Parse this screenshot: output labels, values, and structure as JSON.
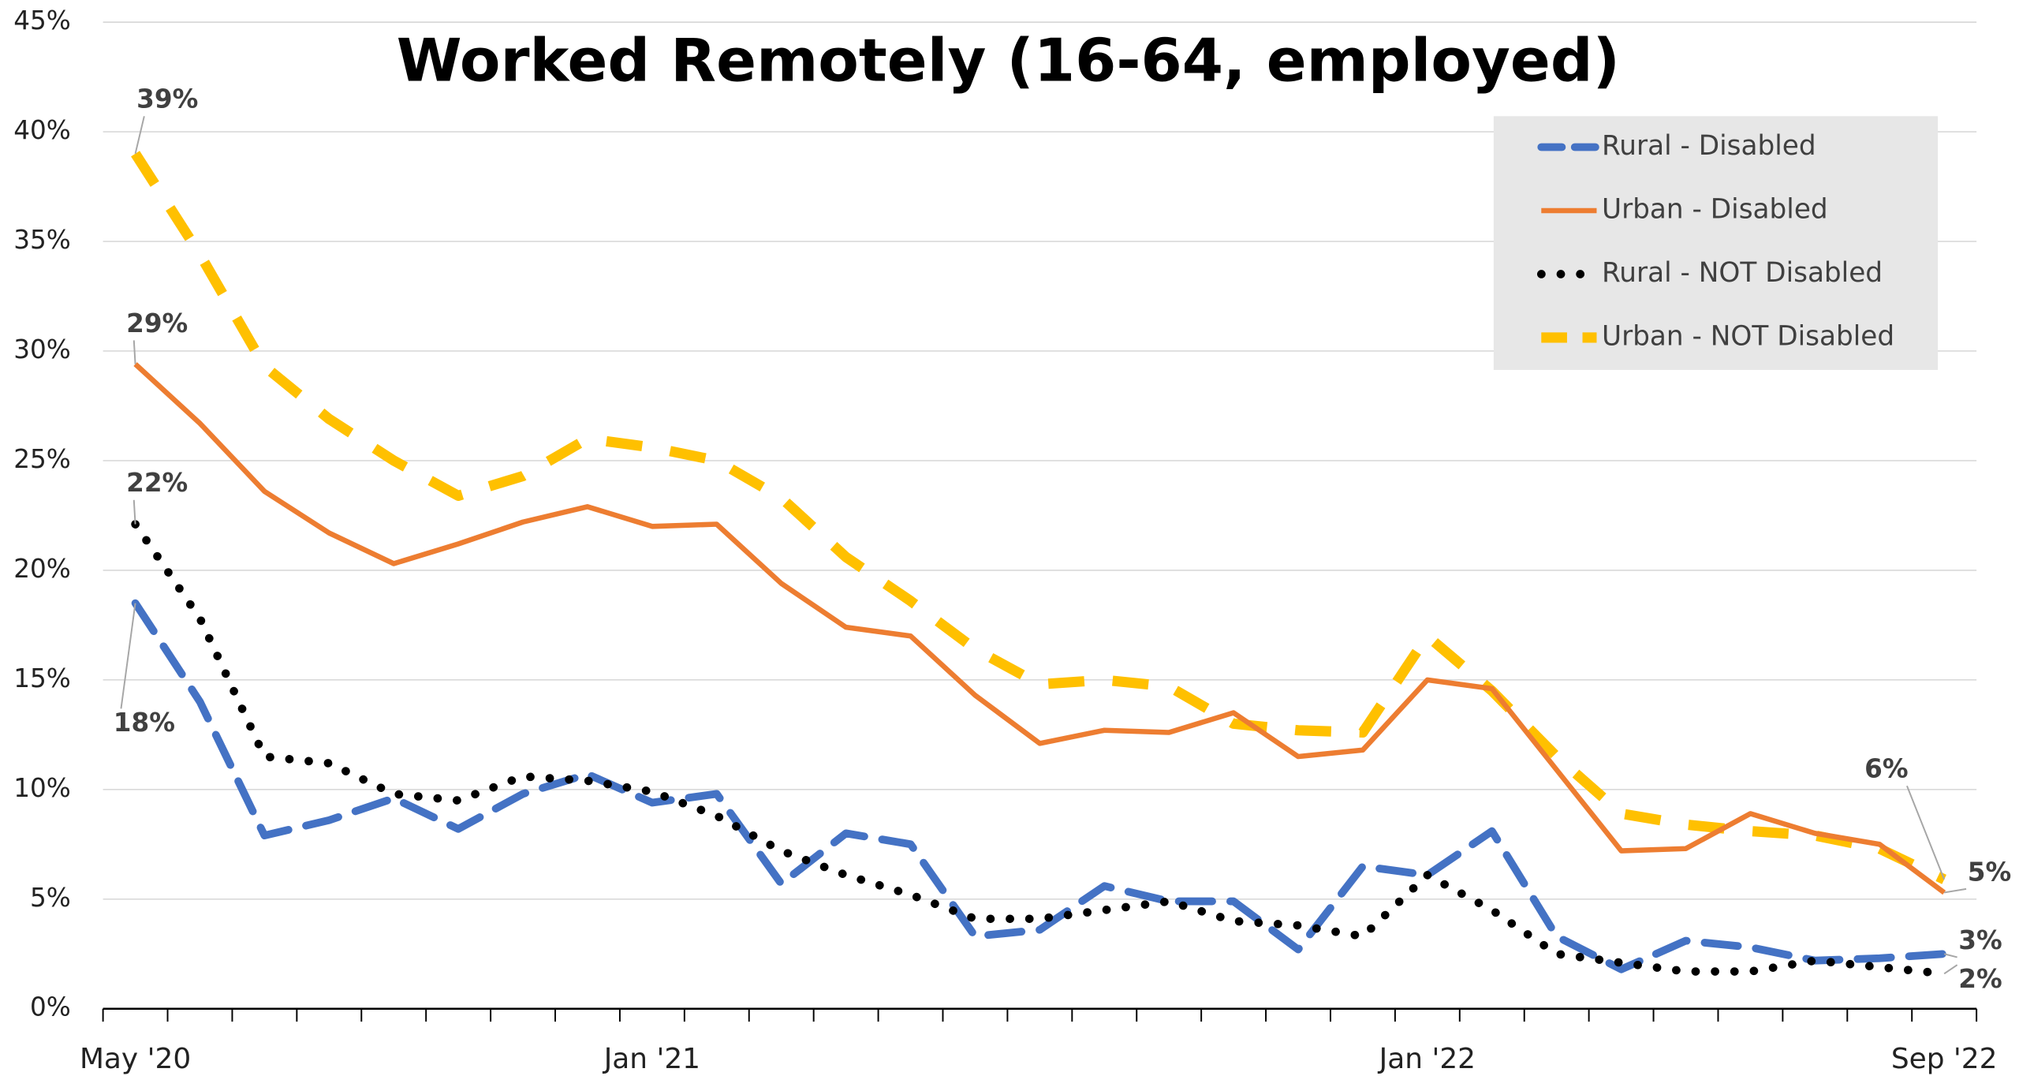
{
  "chart_data": {
    "type": "line",
    "title": "Worked Remotely (16-64, employed)",
    "categories": [
      "May '20",
      null,
      null,
      null,
      null,
      null,
      null,
      null,
      "Jan '21",
      null,
      null,
      null,
      null,
      null,
      null,
      null,
      null,
      null,
      null,
      null,
      "Jan '22",
      null,
      null,
      null,
      null,
      null,
      null,
      null,
      "Sep '22"
    ],
    "ylim": [
      0,
      45
    ],
    "yticks": [
      {
        "value": 0,
        "label": "0%"
      },
      {
        "value": 5,
        "label": "5%"
      },
      {
        "value": 10,
        "label": "10%"
      },
      {
        "value": 15,
        "label": "15%"
      },
      {
        "value": 20,
        "label": "20%"
      },
      {
        "value": 25,
        "label": "25%"
      },
      {
        "value": 30,
        "label": "30%"
      },
      {
        "value": 35,
        "label": "35%"
      },
      {
        "value": 40,
        "label": "40%"
      },
      {
        "value": 45,
        "label": "45%"
      }
    ],
    "grid": true,
    "legend": "top-right",
    "series": [
      {
        "name": "Rural - Disabled",
        "color": "#4472c4",
        "style": "dashed",
        "values": [
          18.5,
          14.0,
          7.9,
          8.6,
          9.6,
          8.2,
          9.8,
          10.7,
          9.4,
          9.8,
          5.7,
          8.0,
          7.5,
          3.3,
          3.6,
          5.6,
          4.9,
          4.9,
          2.7,
          6.5,
          6.1,
          8.1,
          3.3,
          1.8,
          3.1,
          2.8,
          2.2,
          2.3,
          2.5
        ],
        "value_labels": [
          "18%",
          null,
          null,
          null,
          null,
          null,
          null,
          null,
          null,
          null,
          null,
          null,
          null,
          null,
          null,
          null,
          null,
          null,
          null,
          null,
          null,
          null,
          null,
          null,
          null,
          null,
          null,
          null,
          "3%"
        ]
      },
      {
        "name": "Urban - Disabled",
        "color": "#ed7d31",
        "style": "solid",
        "values": [
          29.4,
          26.7,
          23.6,
          21.7,
          20.3,
          21.2,
          22.2,
          22.9,
          22.0,
          22.1,
          19.4,
          17.4,
          17.0,
          14.3,
          12.1,
          12.7,
          12.6,
          13.5,
          11.5,
          11.8,
          15.0,
          14.6,
          10.9,
          7.2,
          7.3,
          8.9,
          8.0,
          7.5,
          5.3
        ],
        "value_labels": [
          "29%",
          null,
          null,
          null,
          null,
          null,
          null,
          null,
          null,
          null,
          null,
          null,
          null,
          null,
          null,
          null,
          null,
          null,
          null,
          null,
          null,
          null,
          null,
          null,
          null,
          null,
          null,
          null,
          "5%"
        ]
      },
      {
        "name": "Rural - NOT Disabled",
        "color": "#000000",
        "style": "dotted",
        "values": [
          22.1,
          17.8,
          11.5,
          11.2,
          9.8,
          9.5,
          10.6,
          10.4,
          9.9,
          8.8,
          7.2,
          6.1,
          5.2,
          4.1,
          4.1,
          4.5,
          4.9,
          4.0,
          3.8,
          3.3,
          6.1,
          4.5,
          2.5,
          2.1,
          1.7,
          1.7,
          2.2,
          1.9,
          1.6
        ],
        "value_labels": [
          "22%",
          null,
          null,
          null,
          null,
          null,
          null,
          null,
          null,
          null,
          null,
          null,
          null,
          null,
          null,
          null,
          null,
          null,
          null,
          null,
          null,
          null,
          null,
          null,
          null,
          null,
          null,
          null,
          "2%"
        ]
      },
      {
        "name": "Urban - NOT Disabled",
        "color": "#ffc000",
        "style": "dashed-thick",
        "values": [
          39.0,
          34.4,
          29.3,
          26.9,
          25.0,
          23.4,
          24.3,
          26.0,
          25.6,
          25.0,
          23.3,
          20.6,
          18.6,
          16.4,
          14.8,
          15.0,
          14.7,
          13.0,
          12.7,
          12.6,
          17.0,
          14.5,
          11.5,
          8.9,
          8.4,
          8.1,
          7.9,
          7.3,
          5.9
        ],
        "value_labels": [
          "39%",
          null,
          null,
          null,
          null,
          null,
          null,
          null,
          null,
          null,
          null,
          null,
          null,
          null,
          null,
          null,
          null,
          null,
          null,
          null,
          null,
          null,
          null,
          null,
          null,
          null,
          null,
          null,
          "6%"
        ]
      }
    ]
  }
}
